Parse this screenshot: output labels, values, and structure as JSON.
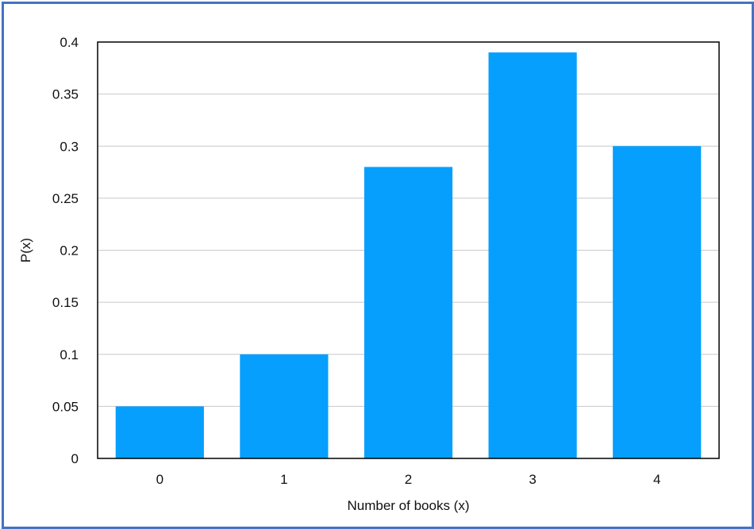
{
  "chart_data": {
    "type": "bar",
    "categories": [
      "0",
      "1",
      "2",
      "3",
      "4"
    ],
    "values": [
      0.05,
      0.1,
      0.28,
      0.39,
      0.3
    ],
    "xlabel": "Number of books (x)",
    "ylabel": "P(x)",
    "ylim": [
      0,
      0.4
    ],
    "yticks": [
      "0",
      "0.05",
      "0.1",
      "0.15",
      "0.2",
      "0.25",
      "0.3",
      "0.35",
      "0.4"
    ],
    "ytick_values": [
      0,
      0.05,
      0.1,
      0.15,
      0.2,
      0.25,
      0.3,
      0.35,
      0.4
    ],
    "grid": "horizontal",
    "legend": "none",
    "bar_color": "#069ffe",
    "frame_color": "#4472c4"
  }
}
